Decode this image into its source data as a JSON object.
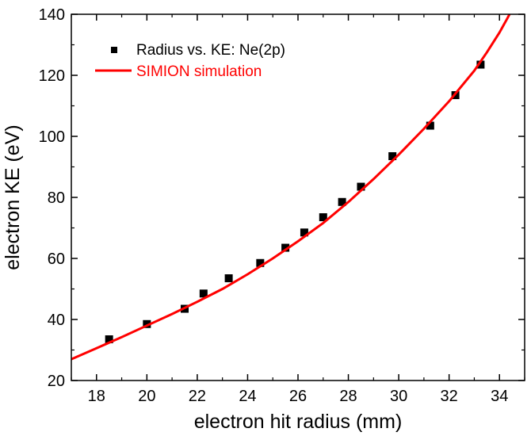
{
  "chart_data": {
    "type": "scatter",
    "xlabel": "electron hit radius (mm)",
    "ylabel": "electron KE (eV)",
    "xlim": [
      17,
      35
    ],
    "ylim": [
      20,
      140
    ],
    "xticks": [
      18,
      20,
      22,
      24,
      26,
      28,
      30,
      32,
      34
    ],
    "yticks": [
      20,
      40,
      60,
      80,
      100,
      120,
      140
    ],
    "grid": false,
    "legend_position": "top-left",
    "series": [
      {
        "name": "Radius vs. KE: Ne(2p)",
        "kind": "markers",
        "marker": "square",
        "color": "#000000",
        "points": [
          {
            "x": 18.5,
            "y": 33.5
          },
          {
            "x": 20.0,
            "y": 38.5
          },
          {
            "x": 21.5,
            "y": 43.5
          },
          {
            "x": 22.25,
            "y": 48.5
          },
          {
            "x": 23.25,
            "y": 53.5
          },
          {
            "x": 24.5,
            "y": 58.5
          },
          {
            "x": 25.5,
            "y": 63.5
          },
          {
            "x": 26.25,
            "y": 68.5
          },
          {
            "x": 27.0,
            "y": 73.5
          },
          {
            "x": 27.75,
            "y": 78.5
          },
          {
            "x": 28.5,
            "y": 83.5
          },
          {
            "x": 29.75,
            "y": 93.5
          },
          {
            "x": 31.25,
            "y": 103.5
          },
          {
            "x": 32.25,
            "y": 113.5
          },
          {
            "x": 33.25,
            "y": 123.5
          }
        ]
      },
      {
        "name": "SIMION simulation",
        "kind": "line",
        "color": "#ff0000",
        "points": [
          {
            "x": 17.0,
            "y": 27.0
          },
          {
            "x": 18.0,
            "y": 30.6
          },
          {
            "x": 19.0,
            "y": 34.2
          },
          {
            "x": 20.0,
            "y": 38.0
          },
          {
            "x": 21.0,
            "y": 41.8
          },
          {
            "x": 22.0,
            "y": 45.8
          },
          {
            "x": 23.0,
            "y": 50.0
          },
          {
            "x": 24.0,
            "y": 54.8
          },
          {
            "x": 25.0,
            "y": 60.0
          },
          {
            "x": 26.0,
            "y": 65.6
          },
          {
            "x": 27.0,
            "y": 71.6
          },
          {
            "x": 28.0,
            "y": 78.5
          },
          {
            "x": 29.0,
            "y": 86.0
          },
          {
            "x": 30.0,
            "y": 94.0
          },
          {
            "x": 31.0,
            "y": 102.5
          },
          {
            "x": 32.0,
            "y": 111.5
          },
          {
            "x": 33.0,
            "y": 121.5
          },
          {
            "x": 33.5,
            "y": 127.5
          },
          {
            "x": 34.0,
            "y": 134.0
          },
          {
            "x": 34.3,
            "y": 138.5
          },
          {
            "x": 34.4,
            "y": 140.0
          }
        ]
      }
    ]
  }
}
